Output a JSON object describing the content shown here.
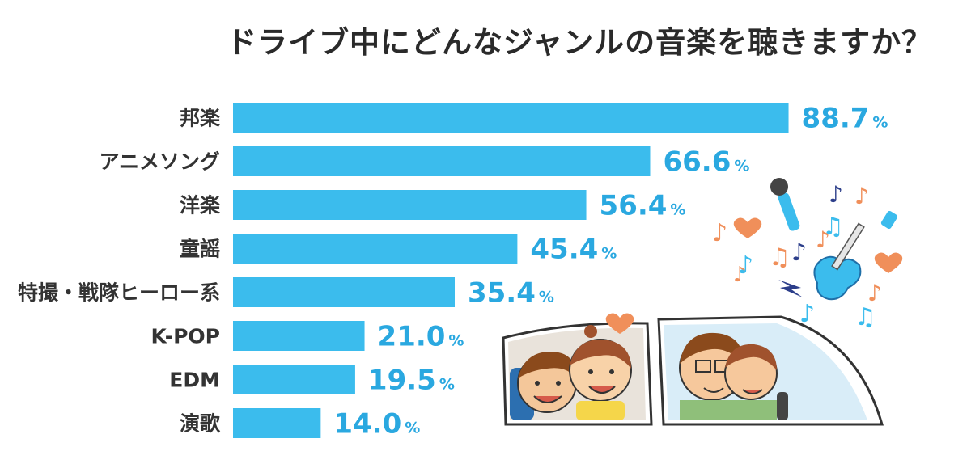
{
  "colors": {
    "bar": "#3bbced",
    "value_text": "#2aa8e0",
    "title_text": "#2a2a2a",
    "label_text": "#333333"
  },
  "chart_data": {
    "type": "bar",
    "orientation": "horizontal",
    "title": "ドライブ中にどんなジャンルの音楽を聴きますか？",
    "xlabel": "",
    "ylabel": "",
    "unit": "%",
    "xlim": [
      0,
      100
    ],
    "grid": false,
    "categories": [
      "邦楽",
      "アニメソング",
      "洋楽",
      "童謡",
      "特撮・戦隊ヒーロー系",
      "K-POP",
      "EDM",
      "演歌"
    ],
    "values": [
      88.7,
      66.6,
      56.4,
      45.4,
      35.4,
      21.0,
      19.5,
      14.0
    ],
    "value_labels": [
      "88.7",
      "66.6",
      "56.4",
      "45.4",
      "35.4",
      "21.0",
      "19.5",
      "14.0"
    ]
  },
  "illustration": {
    "icons": [
      "microphone-icon",
      "electric-guitar-icon",
      "music-note-icon",
      "heart-icon",
      "lightning-bolt-icon"
    ],
    "scenes": [
      "children-in-back-seat",
      "parents-in-front-seat"
    ]
  }
}
